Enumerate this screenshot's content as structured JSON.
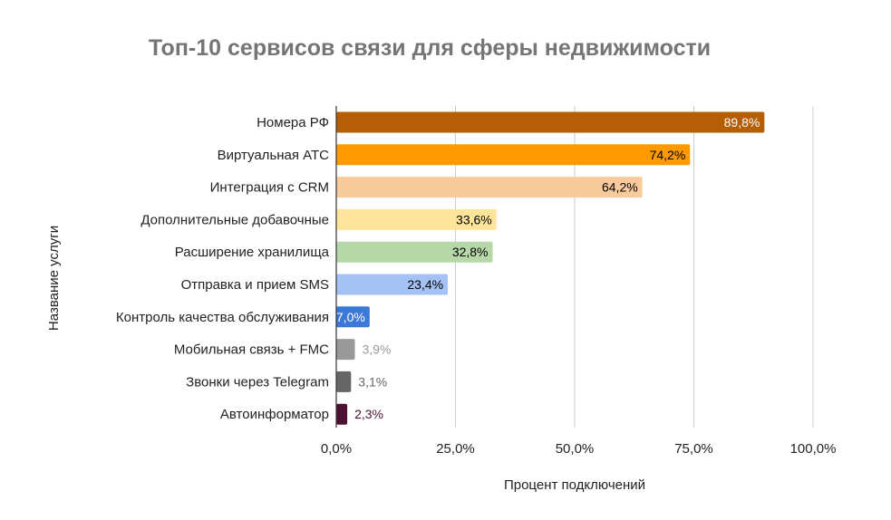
{
  "chart_data": {
    "type": "bar",
    "orientation": "horizontal",
    "title": "Топ-10 сервисов связи для сферы недвижимости",
    "xlabel": "Процент подключений",
    "ylabel": "Название услуги",
    "xlim": [
      0,
      100
    ],
    "ticks": [
      0,
      25,
      50,
      75,
      100
    ],
    "tick_labels": [
      "0,0%",
      "25,0%",
      "50,0%",
      "75,0%",
      "100,0%"
    ],
    "grid": true,
    "legend": "none",
    "categories": [
      "Номера РФ",
      "Виртуальная АТС",
      "Интеграция с CRM",
      "Дополнительные добавочные",
      "Расширение хранилища",
      "Отправка и прием SMS",
      "Контроль качества обслуживания",
      "Мобильная связь + FMC",
      "Звонки через Telegram",
      "Автоинформатор"
    ],
    "values": [
      89.8,
      74.2,
      64.2,
      33.6,
      32.8,
      23.4,
      7.0,
      3.9,
      3.1,
      2.3
    ],
    "value_labels": [
      "89,8%",
      "74,2%",
      "64,2%",
      "33,6%",
      "32,8%",
      "23,4%",
      "7,0%",
      "3,9%",
      "3,1%",
      "2,3%"
    ],
    "colors": [
      "#b45f06",
      "#ff9900",
      "#f9cb9c",
      "#ffe599",
      "#b6d7a8",
      "#a4c2f4",
      "#3c78d8",
      "#999999",
      "#666666",
      "#4c1130"
    ],
    "label_colors": [
      "#ffffff",
      "#000000",
      "#000000",
      "#000000",
      "#000000",
      "#000000",
      "#ffffff",
      "#999999",
      "#666666",
      "#4c1130"
    ],
    "label_position": [
      "inside",
      "inside",
      "inside",
      "inside",
      "inside",
      "inside",
      "inside",
      "outside",
      "outside",
      "outside"
    ]
  }
}
